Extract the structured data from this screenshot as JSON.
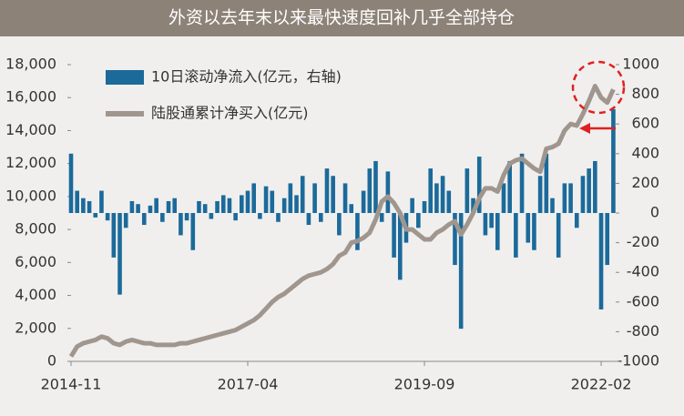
{
  "chart_data": {
    "type": "bar-line",
    "title": "外资以去年末以来最快速度回补几乎全部持仓",
    "x": [
      "2014-11",
      "2014-12",
      "2015-01",
      "2015-02",
      "2015-03",
      "2015-04",
      "2015-05",
      "2015-06",
      "2015-07",
      "2015-08",
      "2015-09",
      "2015-10",
      "2015-11",
      "2015-12",
      "2016-01",
      "2016-02",
      "2016-03",
      "2016-04",
      "2016-05",
      "2016-06",
      "2016-07",
      "2016-08",
      "2016-09",
      "2016-10",
      "2016-11",
      "2016-12",
      "2017-01",
      "2017-02",
      "2017-03",
      "2017-04",
      "2017-05",
      "2017-06",
      "2017-07",
      "2017-08",
      "2017-09",
      "2017-10",
      "2017-11",
      "2017-12",
      "2018-01",
      "2018-02",
      "2018-03",
      "2018-04",
      "2018-05",
      "2018-06",
      "2018-07",
      "2018-08",
      "2018-09",
      "2018-10",
      "2018-11",
      "2018-12",
      "2019-01",
      "2019-02",
      "2019-03",
      "2019-04",
      "2019-05",
      "2019-06",
      "2019-07",
      "2019-08",
      "2019-09",
      "2019-10",
      "2019-11",
      "2019-12",
      "2020-01",
      "2020-02",
      "2020-03",
      "2020-04",
      "2020-05",
      "2020-06",
      "2020-07",
      "2020-08",
      "2020-09",
      "2020-10",
      "2020-11",
      "2020-12",
      "2021-01",
      "2021-02",
      "2021-03",
      "2021-04",
      "2021-05",
      "2021-06",
      "2021-07",
      "2021-08",
      "2021-09",
      "2021-10",
      "2021-11",
      "2021-12",
      "2022-01",
      "2022-02",
      "2022-03",
      "2022-04"
    ],
    "series": [
      {
        "name": "10日滚动净流入(亿元，右轴)",
        "color": "#1b6a9a",
        "axis": "y2",
        "values": [
          400,
          150,
          100,
          80,
          -30,
          150,
          -50,
          -300,
          -550,
          -100,
          80,
          60,
          -80,
          50,
          100,
          -60,
          80,
          100,
          -150,
          -50,
          -250,
          80,
          60,
          -40,
          80,
          120,
          100,
          -50,
          120,
          150,
          200,
          -40,
          180,
          150,
          -60,
          100,
          200,
          120,
          250,
          -80,
          200,
          -60,
          300,
          250,
          -150,
          200,
          60,
          -250,
          150,
          300,
          350,
          -60,
          280,
          -300,
          -450,
          -200,
          100,
          -100,
          80,
          300,
          200,
          250,
          150,
          -350,
          -780,
          300,
          100,
          380,
          -150,
          -100,
          -250,
          200,
          350,
          -300,
          400,
          -200,
          -250,
          250,
          400,
          100,
          -300,
          200,
          200,
          -100,
          250,
          300,
          350,
          -650,
          -350,
          700
        ]
      },
      {
        "name": "陆股通累计净买入(亿元)",
        "color": "#a0968e",
        "values": [
          300,
          900,
          1100,
          1200,
          1300,
          1500,
          1400,
          1100,
          1000,
          1200,
          1300,
          1200,
          1100,
          1100,
          1000,
          1000,
          1000,
          1000,
          1100,
          1100,
          1200,
          1300,
          1400,
          1500,
          1600,
          1700,
          1800,
          1900,
          2100,
          2300,
          2500,
          2800,
          3200,
          3600,
          3900,
          4100,
          4400,
          4700,
          5000,
          5200,
          5300,
          5400,
          5600,
          5900,
          6400,
          6600,
          7200,
          7300,
          7500,
          7800,
          8600,
          9700,
          10000,
          9600,
          9000,
          8000,
          8000,
          7700,
          7400,
          7400,
          7800,
          8000,
          8300,
          8500,
          7700,
          8300,
          9000,
          9900,
          10500,
          10500,
          10300,
          11300,
          12000,
          12200,
          12300,
          12000,
          11700,
          11500,
          12900,
          13000,
          13200,
          14000,
          14400,
          14300,
          15000,
          15800,
          16700,
          16000,
          15700,
          16500
        ]
      }
    ],
    "xticks": [
      "2014-11",
      "2017-04",
      "2019-09",
      "2022-02"
    ],
    "ylim": [
      0,
      18000
    ],
    "yticks": [
      0,
      {
        "value": 2000,
        "label": "2,000"
      },
      {
        "value": 4000,
        "label": "4,000"
      },
      {
        "value": 6000,
        "label": "6,000"
      },
      {
        "value": 8000,
        "label": "8,000"
      },
      {
        "value": 10000,
        "label": "10,000"
      },
      {
        "value": 12000,
        "label": "12,000"
      },
      {
        "value": 14000,
        "label": "14,000"
      },
      {
        "value": 16000,
        "label": "16,000"
      },
      {
        "value": 18000,
        "label": "18,000"
      }
    ],
    "y2lim": [
      -1000,
      1000
    ],
    "y2ticks": [
      -1000,
      -800,
      -600,
      -400,
      -200,
      0,
      200,
      400,
      600,
      800,
      1000
    ]
  }
}
